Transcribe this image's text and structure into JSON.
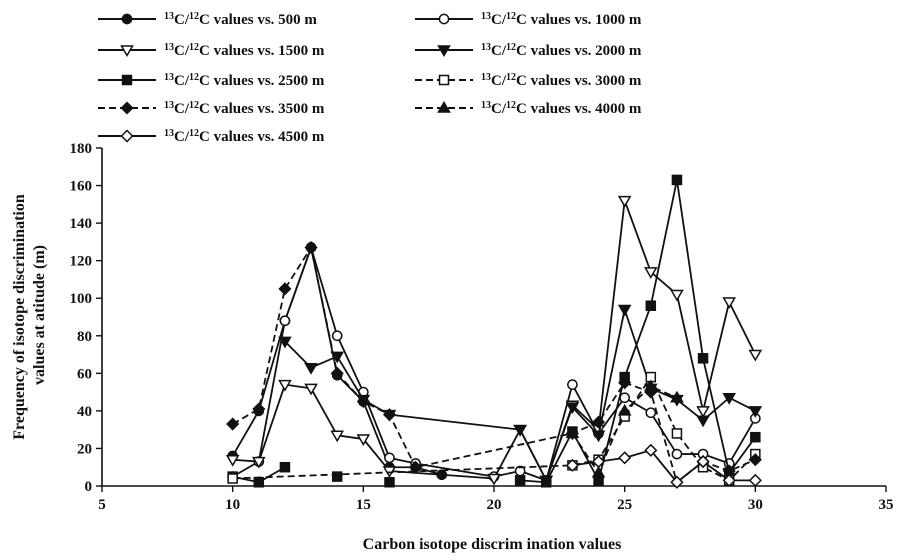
{
  "chart_data": {
    "type": "line",
    "title": "",
    "xlabel": "Carbon isotope discrim ination values",
    "ylabel_lines": [
      "Frequency of isotope discrimination",
      "values at atitude (m)"
    ],
    "xlim": [
      5,
      35
    ],
    "ylim": [
      0,
      180
    ],
    "xticks": [
      5,
      10,
      15,
      20,
      25,
      30,
      35
    ],
    "yticks": [
      0,
      20,
      40,
      60,
      80,
      100,
      120,
      140,
      160,
      180
    ],
    "grid": false,
    "legend_position": "top",
    "series": [
      {
        "name": "C/ C values vs. 500 m",
        "iso_a": "13",
        "iso_b": "12",
        "marker": "circle-filled",
        "dash": false,
        "x": [
          10,
          11,
          12,
          13,
          14,
          15,
          16,
          17,
          18
        ],
        "y": [
          16,
          40,
          88,
          127,
          59,
          45,
          10,
          10,
          6
        ]
      },
      {
        "name": "C/ C values vs. 1000 m",
        "iso_a": "13",
        "iso_b": "12",
        "marker": "circle-open",
        "dash": false,
        "x": [
          10,
          11,
          12,
          13,
          14,
          15,
          16,
          17,
          20,
          21,
          22,
          23,
          24,
          25,
          26,
          27,
          28,
          29,
          30
        ],
        "y": [
          5,
          13,
          88,
          127,
          80,
          50,
          15,
          12,
          5,
          8,
          3,
          54,
          28,
          47,
          39,
          17,
          17,
          12,
          36
        ]
      },
      {
        "name": "C/ C values vs. 1500 m",
        "iso_a": "13",
        "iso_b": "12",
        "marker": "triangle-down-open",
        "dash": false,
        "x": [
          10,
          11,
          12,
          13,
          14,
          15,
          16,
          20,
          21,
          22,
          23,
          24,
          25,
          26,
          27,
          28,
          29,
          30
        ],
        "y": [
          14,
          13,
          54,
          52,
          27,
          25,
          8,
          4,
          30,
          3,
          43,
          30,
          152,
          114,
          102,
          40,
          98,
          70
        ]
      },
      {
        "name": "C/ C values vs. 2000 m",
        "iso_a": "13",
        "iso_b": "12",
        "marker": "triangle-down-filled",
        "dash": false,
        "x": [
          12,
          13,
          14,
          15,
          16,
          21,
          22,
          23,
          24,
          25,
          26,
          27,
          28,
          29,
          30
        ],
        "y": [
          77,
          63,
          69,
          46,
          38,
          30,
          3,
          42,
          27,
          94,
          52,
          46,
          35,
          47,
          40
        ]
      },
      {
        "name": "C/ C values vs. 2500 m",
        "iso_a": "13",
        "iso_b": "12",
        "marker": "square-filled",
        "dash": false,
        "segments": [
          {
            "x": [
              10,
              11,
              12
            ],
            "y": [
              5,
              2,
              10
            ]
          },
          {
            "x": [
              14
            ],
            "y": [
              5
            ]
          },
          {
            "x": [
              16
            ],
            "y": [
              2
            ]
          },
          {
            "x": [
              21,
              22,
              23,
              24,
              25,
              26,
              27,
              28,
              29,
              30
            ],
            "y": [
              3,
              2,
              29,
              3,
              58,
              96,
              163,
              68,
              7,
              26
            ]
          }
        ]
      },
      {
        "name": "C/ C values vs. 3000 m",
        "iso_a": "13",
        "iso_b": "12",
        "marker": "square-open",
        "dash": true,
        "x": [
          10,
          23,
          24,
          25,
          26,
          27,
          28,
          29,
          30
        ],
        "y": [
          4,
          11,
          14,
          37,
          58,
          28,
          10,
          3,
          17
        ]
      },
      {
        "name": "C/ C values vs. 3500 m",
        "iso_a": "13",
        "iso_b": "12",
        "marker": "diamond-filled",
        "dash": true,
        "x": [
          10,
          11,
          12,
          13,
          14,
          15,
          16,
          17,
          23,
          24,
          25,
          26,
          27,
          28,
          29,
          30
        ],
        "y": [
          33,
          41,
          105,
          127,
          60,
          45,
          38,
          10,
          28,
          34,
          55,
          50,
          2,
          13,
          8,
          14
        ]
      },
      {
        "name": "C/ C values vs. 4000 m",
        "iso_a": "13",
        "iso_b": "12",
        "marker": "triangle-up-filled",
        "dash": true,
        "x": [
          23,
          24,
          25,
          26,
          27
        ],
        "y": [
          28,
          7,
          40,
          53,
          47
        ]
      },
      {
        "name": "C/ C values vs. 4500 m",
        "iso_a": "13",
        "iso_b": "12",
        "marker": "diamond-open",
        "dash": false,
        "x": [
          23,
          24,
          25,
          26,
          27,
          28,
          29,
          30
        ],
        "y": [
          11,
          13,
          15,
          19,
          2,
          13,
          3,
          3
        ]
      }
    ]
  }
}
